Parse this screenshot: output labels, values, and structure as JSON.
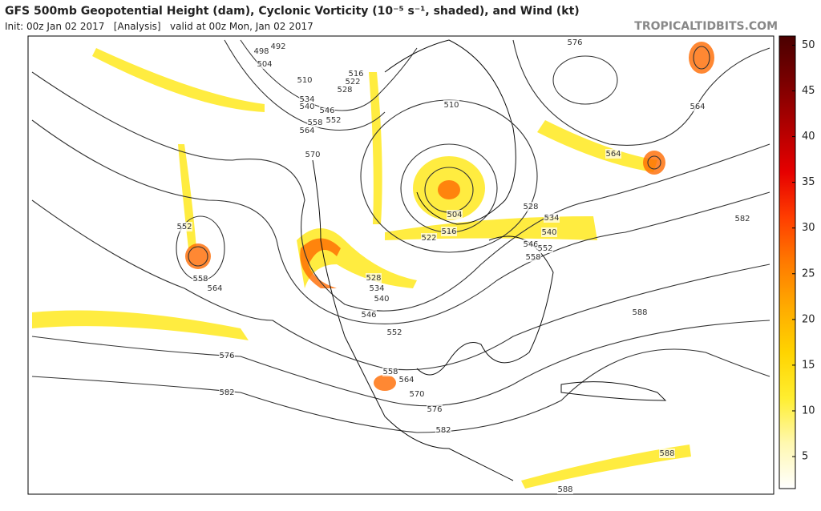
{
  "header": {
    "title": "GFS 500mb Geopotential Height (dam), Cyclonic Vorticity (10⁻⁵ s⁻¹, shaded), and Wind (kt)",
    "subtitle": "Init: 00z Jan 02 2017   [Analysis]   valid at 00z Mon, Jan 02 2017",
    "source": "TROPICALTIDBITS.COM"
  },
  "colorbar": {
    "range": [
      1.5,
      51
    ],
    "ticks": [
      5,
      10,
      15,
      20,
      25,
      30,
      35,
      40,
      45,
      50
    ],
    "colors": [
      "#ffffff",
      "#fff8b0",
      "#ffee30",
      "#ffd400",
      "#ffab00",
      "#ff7a00",
      "#ff3d00",
      "#e60000",
      "#b00000",
      "#7a0000",
      "#4a0000"
    ]
  },
  "contour_labels": [
    492,
    498,
    504,
    510,
    516,
    522,
    528,
    534,
    540,
    546,
    552,
    558,
    564,
    570,
    576,
    564,
    564,
    510,
    504,
    516,
    522,
    528,
    534,
    540,
    546,
    552,
    558,
    552,
    558,
    564,
    528,
    534,
    540,
    546,
    552,
    558,
    564,
    570,
    576,
    582,
    576,
    582,
    582,
    588,
    588,
    588
  ]
}
